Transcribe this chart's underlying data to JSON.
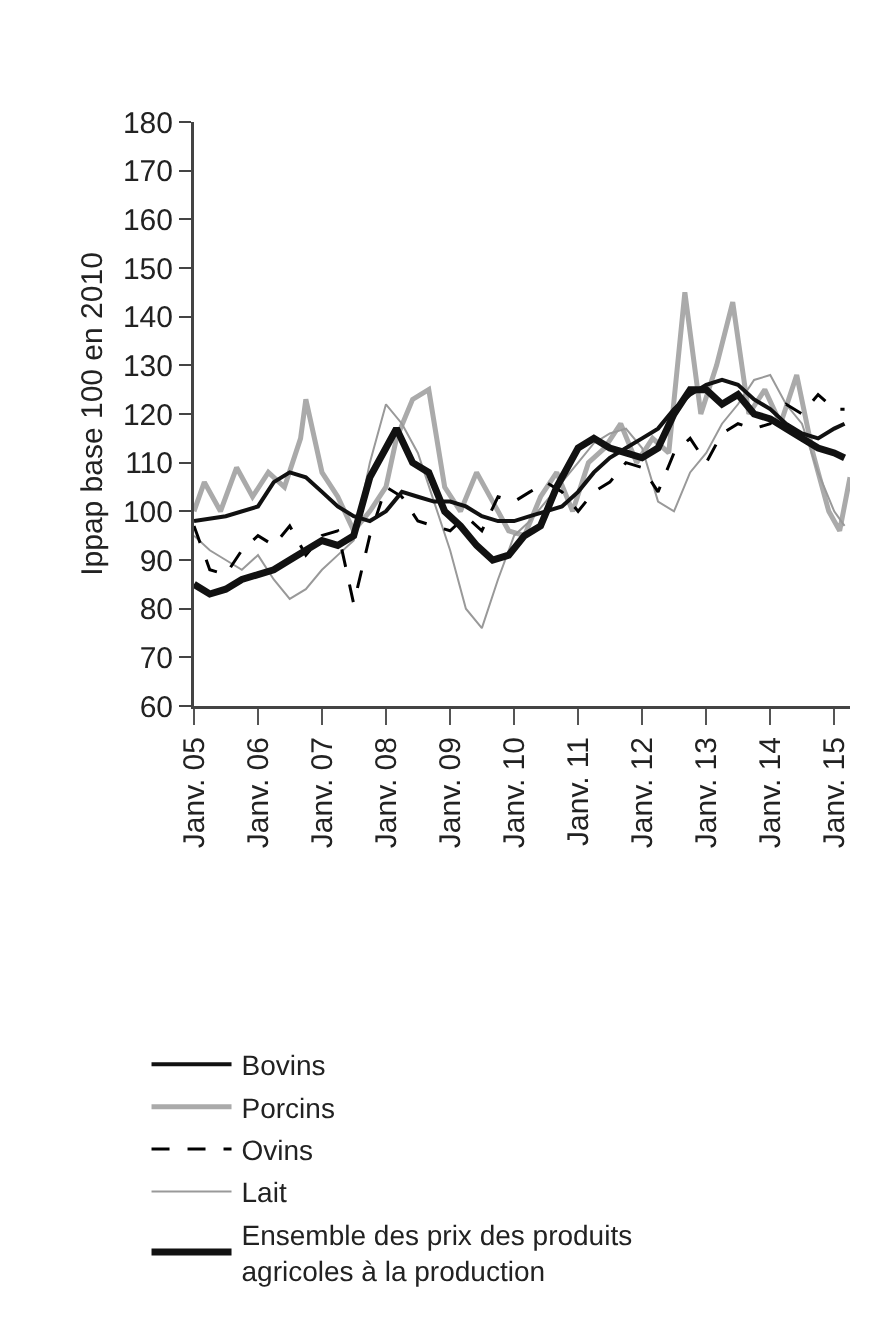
{
  "chart_data": {
    "type": "line",
    "ylabel": "Ippap base 100 en 2010",
    "xlim": [
      "2005-01",
      "2015-04"
    ],
    "xticks": [
      {
        "value": "2005-01",
        "label": "Janv. 05"
      },
      {
        "value": "2006-01",
        "label": "Janv. 06"
      },
      {
        "value": "2007-01",
        "label": "Janv. 07"
      },
      {
        "value": "2008-01",
        "label": "Janv. 08"
      },
      {
        "value": "2009-01",
        "label": "Janv. 09"
      },
      {
        "value": "2010-01",
        "label": "Janv. 10"
      },
      {
        "value": "2011-01",
        "label": "Janv. 11"
      },
      {
        "value": "2012-01",
        "label": "Janv. 12"
      },
      {
        "value": "2013-01",
        "label": "Janv. 13"
      },
      {
        "value": "2014-01",
        "label": "Janv. 14"
      },
      {
        "value": "2015-01",
        "label": "Janv. 15"
      }
    ],
    "ylim": [
      60,
      180
    ],
    "yticks": [
      60,
      70,
      80,
      90,
      100,
      110,
      120,
      130,
      140,
      150,
      160,
      170,
      180
    ],
    "grid": false,
    "legend": "bottom",
    "marker": "none",
    "series": [
      {
        "name": "Porcins",
        "color": "#aaaaaa",
        "line_style": "solid",
        "x": [
          "2005-01",
          "2005-03",
          "2005-06",
          "2005-09",
          "2005-12",
          "2006-03",
          "2006-06",
          "2006-09",
          "2006-10",
          "2007-01",
          "2007-04",
          "2007-07",
          "2007-10",
          "2008-01",
          "2008-03",
          "2008-06",
          "2008-09",
          "2008-12",
          "2009-03",
          "2009-06",
          "2009-09",
          "2009-12",
          "2010-03",
          "2010-06",
          "2010-09",
          "2010-12",
          "2011-03",
          "2011-06",
          "2011-09",
          "2011-12",
          "2012-03",
          "2012-06",
          "2012-09",
          "2012-12",
          "2013-03",
          "2013-06",
          "2013-09",
          "2013-12",
          "2014-03",
          "2014-06",
          "2014-09",
          "2014-12",
          "2015-02",
          "2015-04"
        ],
        "values": [
          100,
          106,
          100,
          109,
          103,
          108,
          105,
          115,
          123,
          108,
          103,
          96,
          100,
          105,
          115,
          123,
          125,
          105,
          100,
          108,
          102,
          96,
          95,
          103,
          108,
          100,
          110,
          113,
          118,
          110,
          115,
          112,
          145,
          120,
          130,
          143,
          120,
          125,
          118,
          128,
          112,
          100,
          96,
          107
        ]
      },
      {
        "name": "Lait",
        "color": "#999999",
        "line_style": "solid",
        "x": [
          "2005-01",
          "2005-04",
          "2005-07",
          "2005-10",
          "2006-01",
          "2006-04",
          "2006-07",
          "2006-10",
          "2007-01",
          "2007-04",
          "2007-07",
          "2007-10",
          "2008-01",
          "2008-04",
          "2008-07",
          "2008-10",
          "2009-01",
          "2009-04",
          "2009-07",
          "2009-10",
          "2010-01",
          "2010-04",
          "2010-07",
          "2010-10",
          "2011-01",
          "2011-04",
          "2011-07",
          "2011-10",
          "2012-01",
          "2012-04",
          "2012-07",
          "2012-10",
          "2013-01",
          "2013-04",
          "2013-07",
          "2013-10",
          "2014-01",
          "2014-04",
          "2014-07",
          "2014-10",
          "2015-01",
          "2015-03"
        ],
        "values": [
          95,
          92,
          90,
          88,
          91,
          86,
          82,
          84,
          88,
          91,
          94,
          110,
          122,
          118,
          112,
          102,
          92,
          80,
          76,
          86,
          95,
          98,
          102,
          106,
          110,
          114,
          116,
          117,
          113,
          102,
          100,
          108,
          112,
          118,
          122,
          127,
          128,
          122,
          118,
          108,
          100,
          97
        ]
      },
      {
        "name": "Ovins",
        "color": "#000000",
        "line_style": "dashed",
        "x": [
          "2005-01",
          "2005-04",
          "2005-07",
          "2005-10",
          "2006-01",
          "2006-04",
          "2006-07",
          "2006-10",
          "2007-01",
          "2007-04",
          "2007-07",
          "2007-10",
          "2008-01",
          "2008-04",
          "2008-07",
          "2008-10",
          "2009-01",
          "2009-04",
          "2009-07",
          "2009-10",
          "2010-01",
          "2010-04",
          "2010-07",
          "2010-10",
          "2011-01",
          "2011-04",
          "2011-07",
          "2011-10",
          "2012-01",
          "2012-04",
          "2012-07",
          "2012-10",
          "2013-01",
          "2013-04",
          "2013-07",
          "2013-10",
          "2014-01",
          "2014-04",
          "2014-07",
          "2014-10",
          "2015-01",
          "2015-03"
        ],
        "values": [
          97,
          88,
          87,
          92,
          95,
          93,
          97,
          91,
          95,
          96,
          81,
          95,
          105,
          103,
          98,
          97,
          96,
          99,
          96,
          103,
          102,
          104,
          106,
          104,
          100,
          104,
          106,
          110,
          109,
          104,
          112,
          115,
          110,
          116,
          118,
          117,
          118,
          122,
          120,
          124,
          121,
          121
        ]
      },
      {
        "name": "Bovins",
        "color": "#111111",
        "line_style": "solid",
        "x": [
          "2005-01",
          "2005-07",
          "2006-01",
          "2006-04",
          "2006-07",
          "2006-10",
          "2007-01",
          "2007-04",
          "2007-07",
          "2007-10",
          "2008-01",
          "2008-04",
          "2008-07",
          "2008-10",
          "2009-01",
          "2009-04",
          "2009-07",
          "2009-10",
          "2010-01",
          "2010-04",
          "2010-07",
          "2010-10",
          "2011-01",
          "2011-04",
          "2011-07",
          "2011-10",
          "2012-01",
          "2012-04",
          "2012-07",
          "2012-10",
          "2013-01",
          "2013-04",
          "2013-07",
          "2013-10",
          "2014-01",
          "2014-04",
          "2014-07",
          "2014-10",
          "2015-01",
          "2015-03"
        ],
        "values": [
          98,
          99,
          101,
          106,
          108,
          107,
          104,
          101,
          99,
          98,
          100,
          104,
          103,
          102,
          102,
          101,
          99,
          98,
          98,
          99,
          100,
          101,
          104,
          108,
          111,
          113,
          115,
          117,
          121,
          124,
          126,
          127,
          126,
          123,
          121,
          118,
          116,
          115,
          117,
          118
        ]
      },
      {
        "name": "Ensemble des prix des produits agricoles à la production",
        "color": "#111111",
        "line_style": "solid",
        "x": [
          "2005-01",
          "2005-04",
          "2005-07",
          "2005-10",
          "2006-01",
          "2006-04",
          "2006-07",
          "2006-10",
          "2007-01",
          "2007-04",
          "2007-07",
          "2007-10",
          "2008-01",
          "2008-03",
          "2008-06",
          "2008-09",
          "2008-12",
          "2009-03",
          "2009-06",
          "2009-09",
          "2009-12",
          "2010-03",
          "2010-06",
          "2010-09",
          "2011-01",
          "2011-04",
          "2011-07",
          "2011-10",
          "2012-01",
          "2012-04",
          "2012-07",
          "2012-10",
          "2013-01",
          "2013-04",
          "2013-07",
          "2013-10",
          "2014-01",
          "2014-04",
          "2014-07",
          "2014-10",
          "2015-01",
          "2015-03"
        ],
        "values": [
          85,
          83,
          84,
          86,
          87,
          88,
          90,
          92,
          94,
          93,
          95,
          107,
          113,
          117,
          110,
          108,
          100,
          97,
          93,
          90,
          91,
          95,
          97,
          105,
          113,
          115,
          113,
          112,
          111,
          113,
          120,
          125,
          125,
          122,
          124,
          120,
          119,
          117,
          115,
          113,
          112,
          111
        ]
      }
    ]
  }
}
